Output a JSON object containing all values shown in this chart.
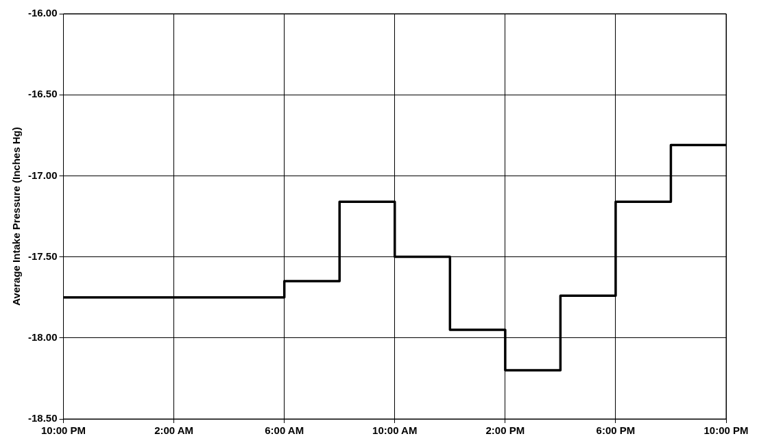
{
  "chart_data": {
    "type": "step",
    "ylabel": "Average Intake Pressure (Inches Hg)",
    "x": [
      "2000-01-01T22:00",
      "2000-01-02T06:00",
      "2000-01-02T08:00",
      "2000-01-02T10:00",
      "2000-01-02T12:00",
      "2000-01-02T14:00",
      "2000-01-02T16:00",
      "2000-01-02T18:00",
      "2000-01-02T20:00",
      "2000-01-02T22:00"
    ],
    "series": [
      {
        "color": "#000000",
        "values": [
          -17.75,
          -17.65,
          -17.16,
          -17.5,
          -17.95,
          -18.2,
          -17.74,
          -17.16,
          -16.81,
          -16.81
        ]
      }
    ],
    "xlim": [
      "2000-01-01T22:00",
      "2000-01-02T22:00"
    ],
    "xticks": [
      {
        "value": "2000-01-01T22:00",
        "label": "10:00 PM"
      },
      {
        "value": "2000-01-02T02:00",
        "label": "2:00 AM"
      },
      {
        "value": "2000-01-02T06:00",
        "label": "6:00 AM"
      },
      {
        "value": "2000-01-02T10:00",
        "label": "10:00 AM"
      },
      {
        "value": "2000-01-02T14:00",
        "label": "2:00 PM"
      },
      {
        "value": "2000-01-02T18:00",
        "label": "6:00 PM"
      },
      {
        "value": "2000-01-02T22:00",
        "label": "10:00 PM"
      }
    ],
    "ylim": [
      -18.5,
      -16
    ],
    "yticks": [
      {
        "value": -18.5,
        "label": "-18.50"
      },
      {
        "value": -18,
        "label": "-18.00"
      },
      {
        "value": -17.5,
        "label": "-17.50"
      },
      {
        "value": -17,
        "label": "-17.00"
      },
      {
        "value": -16.5,
        "label": "-16.50"
      },
      {
        "value": -16,
        "label": "-16.00"
      }
    ],
    "grid": true,
    "legend": false,
    "marker": "none",
    "line_style": "solid"
  }
}
